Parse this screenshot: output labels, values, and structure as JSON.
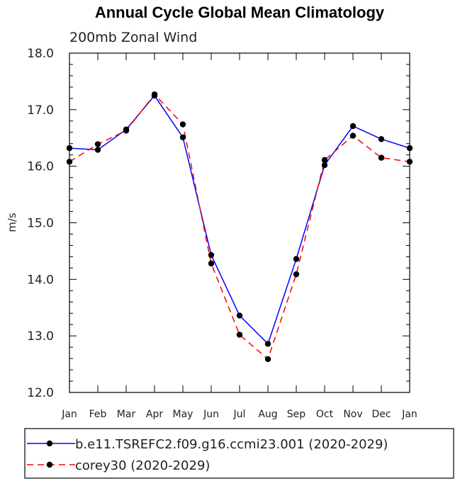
{
  "chart_data": {
    "type": "line",
    "title": "Annual Cycle Global Mean Climatology",
    "subtitle": "200mb Zonal Wind",
    "xlabel": "",
    "ylabel": "m/s",
    "ylim": [
      12.0,
      18.0
    ],
    "yticks": [
      "12.0",
      "13.0",
      "14.0",
      "15.0",
      "16.0",
      "17.0",
      "18.0"
    ],
    "categories": [
      "Jan",
      "Feb",
      "Mar",
      "Apr",
      "May",
      "Jun",
      "Jul",
      "Aug",
      "Sep",
      "Oct",
      "Nov",
      "Dec",
      "Jan"
    ],
    "grid": false,
    "legend_position": "bottom",
    "series": [
      {
        "name": "b.e11.TSREFC2.f09.g16.ccmi23.001 (2020-2029)",
        "color": "#0000ff",
        "dash": "solid",
        "values": [
          16.32,
          16.29,
          16.65,
          17.25,
          16.51,
          14.43,
          13.36,
          12.86,
          14.36,
          16.02,
          16.71,
          16.48,
          16.32
        ]
      },
      {
        "name": "corey30 (2020-2029)",
        "color": "#ff0000",
        "dash": "dashed",
        "values": [
          16.08,
          16.39,
          16.63,
          17.27,
          16.74,
          14.28,
          13.02,
          12.59,
          14.09,
          16.11,
          16.54,
          16.15,
          16.08
        ]
      }
    ]
  }
}
